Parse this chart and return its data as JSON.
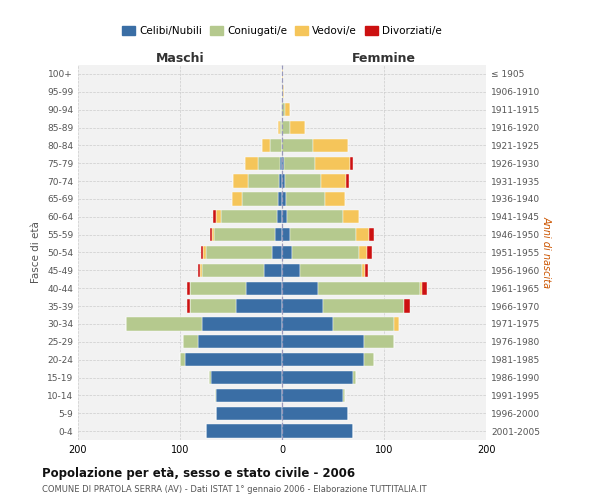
{
  "age_groups": [
    "0-4",
    "5-9",
    "10-14",
    "15-19",
    "20-24",
    "25-29",
    "30-34",
    "35-39",
    "40-44",
    "45-49",
    "50-54",
    "55-59",
    "60-64",
    "65-69",
    "70-74",
    "75-79",
    "80-84",
    "85-89",
    "90-94",
    "95-99",
    "100+"
  ],
  "birth_years": [
    "2001-2005",
    "1996-2000",
    "1991-1995",
    "1986-1990",
    "1981-1985",
    "1976-1980",
    "1971-1975",
    "1966-1970",
    "1961-1965",
    "1956-1960",
    "1951-1955",
    "1946-1950",
    "1941-1945",
    "1936-1940",
    "1931-1935",
    "1926-1930",
    "1921-1925",
    "1916-1920",
    "1911-1915",
    "1906-1910",
    "≤ 1905"
  ],
  "colors": {
    "celibe": "#3a6ea5",
    "coniugato": "#b5c98e",
    "vedovo": "#f5c55a",
    "divorziato": "#cc1111"
  },
  "maschi_celibe": [
    75,
    65,
    65,
    70,
    95,
    82,
    78,
    45,
    35,
    18,
    10,
    7,
    5,
    4,
    3,
    2,
    0,
    0,
    0,
    0,
    0
  ],
  "maschi_coniugato": [
    0,
    0,
    1,
    2,
    5,
    15,
    75,
    45,
    55,
    60,
    65,
    60,
    55,
    35,
    30,
    22,
    12,
    2,
    1,
    0,
    0
  ],
  "maschi_vedovo": [
    0,
    0,
    0,
    0,
    0,
    0,
    0,
    0,
    0,
    2,
    2,
    2,
    5,
    10,
    15,
    12,
    8,
    2,
    0,
    0,
    0
  ],
  "maschi_div": [
    0,
    0,
    0,
    0,
    0,
    0,
    0,
    3,
    3,
    2,
    2,
    2,
    3,
    0,
    0,
    0,
    0,
    0,
    0,
    0,
    0
  ],
  "femmine_celibe": [
    70,
    65,
    60,
    70,
    80,
    80,
    50,
    40,
    35,
    18,
    10,
    8,
    5,
    4,
    3,
    2,
    0,
    0,
    0,
    0,
    0
  ],
  "femmine_coniugato": [
    0,
    0,
    2,
    3,
    10,
    30,
    60,
    80,
    100,
    60,
    65,
    65,
    55,
    38,
    35,
    30,
    30,
    8,
    3,
    1,
    0
  ],
  "femmine_vedovo": [
    0,
    0,
    0,
    0,
    0,
    0,
    5,
    0,
    2,
    3,
    8,
    12,
    15,
    20,
    25,
    35,
    35,
    15,
    5,
    1,
    1
  ],
  "femmine_div": [
    0,
    0,
    0,
    0,
    0,
    0,
    0,
    5,
    5,
    3,
    5,
    5,
    0,
    0,
    3,
    3,
    0,
    0,
    0,
    0,
    0
  ],
  "title": "Popolazione per età, sesso e stato civile - 2006",
  "subtitle": "COMUNE DI PRATOLA SERRA (AV) - Dati ISTAT 1° gennaio 2006 - Elaborazione TUTTITALIA.IT",
  "ylabel_left": "Fasce di età",
  "ylabel_right": "Anni di nascita",
  "xlabel_maschi": "Maschi",
  "xlabel_femmine": "Femmine",
  "xlim": 200,
  "grid_color": "#cccccc",
  "bar_height": 0.75
}
